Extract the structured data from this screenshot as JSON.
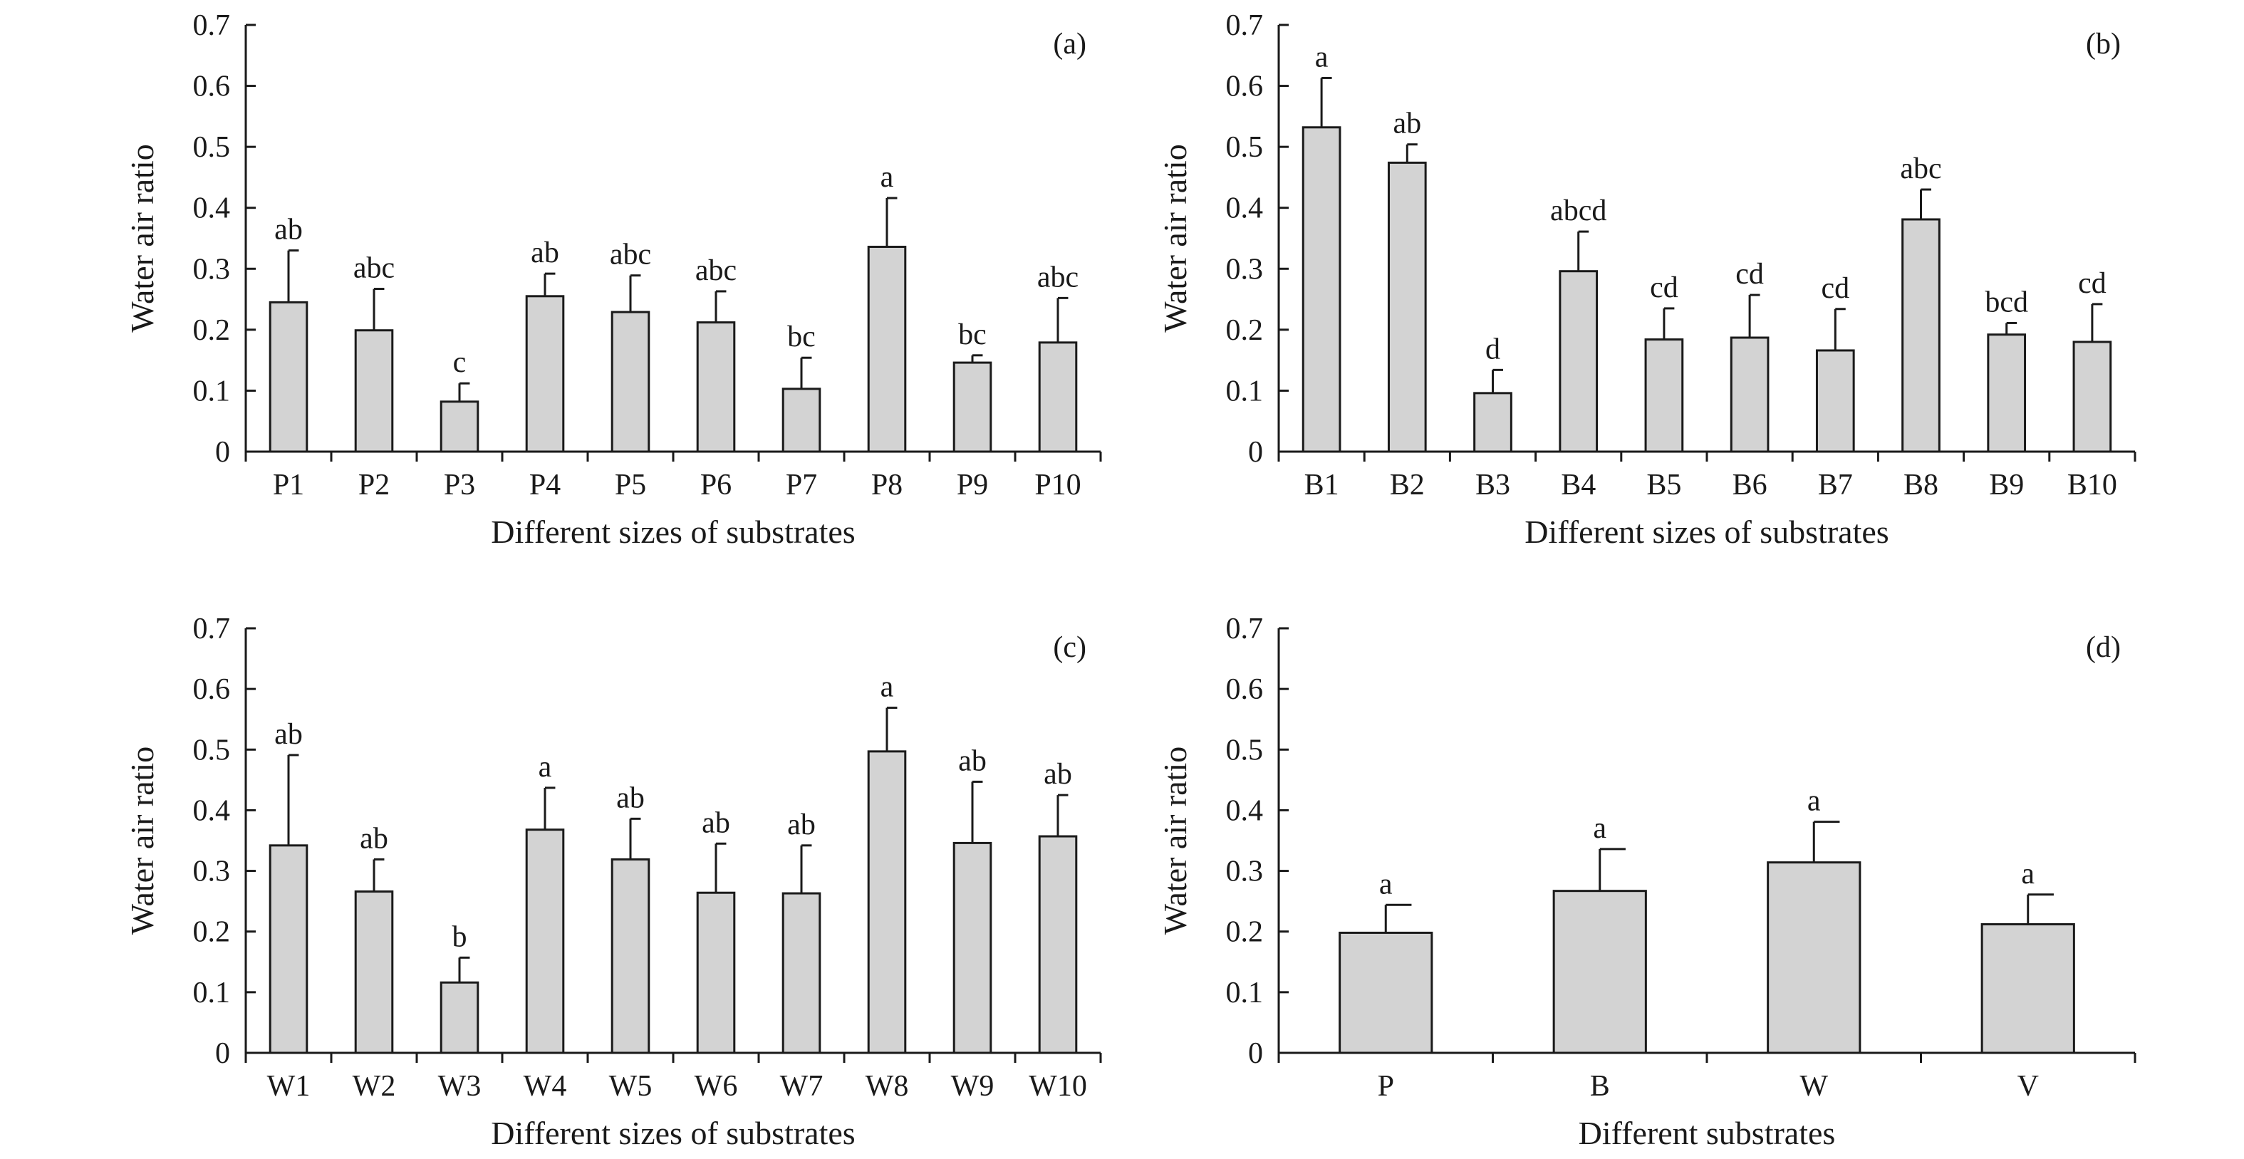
{
  "chart_data": [
    {
      "type": "bar",
      "panel_label": "(a)",
      "xlabel": "Different sizes of substrates",
      "ylabel": "Water air ratio",
      "ylim": [
        0,
        0.7
      ],
      "yticks": [
        "0",
        "0.1",
        "0.2",
        "0.3",
        "0.4",
        "0.5",
        "0.6",
        "0.7"
      ],
      "grid": false,
      "categories": [
        "P1",
        "P2",
        "P3",
        "P4",
        "P5",
        "P6",
        "P7",
        "P8",
        "P9",
        "P10"
      ],
      "values": [
        0.245,
        0.199,
        0.082,
        0.255,
        0.229,
        0.212,
        0.103,
        0.336,
        0.146,
        0.179
      ],
      "errors": [
        0.085,
        0.068,
        0.03,
        0.037,
        0.06,
        0.051,
        0.051,
        0.08,
        0.012,
        0.073
      ],
      "significance": [
        "ab",
        "abc",
        "c",
        "ab",
        "abc",
        "abc",
        "bc",
        "a",
        "bc",
        "abc"
      ]
    },
    {
      "type": "bar",
      "panel_label": "(b)",
      "xlabel": "Different sizes of substrates",
      "ylabel": "Water air ratio",
      "ylim": [
        0,
        0.7
      ],
      "yticks": [
        "0",
        "0.1",
        "0.2",
        "0.3",
        "0.4",
        "0.5",
        "0.6",
        "0.7"
      ],
      "grid": false,
      "categories": [
        "B1",
        "B2",
        "B3",
        "B4",
        "B5",
        "B6",
        "B7",
        "B8",
        "B9",
        "B10"
      ],
      "values": [
        0.532,
        0.474,
        0.096,
        0.296,
        0.184,
        0.187,
        0.166,
        0.381,
        0.192,
        0.18
      ],
      "errors": [
        0.081,
        0.03,
        0.038,
        0.065,
        0.051,
        0.07,
        0.068,
        0.049,
        0.019,
        0.062
      ],
      "significance": [
        "a",
        "ab",
        "d",
        "abcd",
        "cd",
        "cd",
        "cd",
        "abc",
        "bcd",
        "cd"
      ]
    },
    {
      "type": "bar",
      "panel_label": "(c)",
      "xlabel": "Different sizes of substrates",
      "ylabel": "Water air ratio",
      "ylim": [
        0,
        0.7
      ],
      "yticks": [
        "0",
        "0.1",
        "0.2",
        "0.3",
        "0.4",
        "0.5",
        "0.6",
        "0.7"
      ],
      "grid": false,
      "categories": [
        "W1",
        "W2",
        "W3",
        "W4",
        "W5",
        "W6",
        "W7",
        "W8",
        "W9",
        "W10"
      ],
      "values": [
        0.342,
        0.266,
        0.116,
        0.368,
        0.319,
        0.264,
        0.263,
        0.497,
        0.346,
        0.357
      ],
      "errors": [
        0.149,
        0.053,
        0.041,
        0.069,
        0.067,
        0.081,
        0.079,
        0.072,
        0.101,
        0.068
      ],
      "significance": [
        "ab",
        "ab",
        "b",
        "a",
        "ab",
        "ab",
        "ab",
        "a",
        "ab",
        "ab"
      ]
    },
    {
      "type": "bar",
      "panel_label": "(d)",
      "xlabel": "Different substrates",
      "ylabel": "Water air ratio",
      "ylim": [
        0,
        0.7
      ],
      "yticks": [
        "0",
        "0.1",
        "0.2",
        "0.3",
        "0.4",
        "0.5",
        "0.6",
        "0.7"
      ],
      "grid": false,
      "categories": [
        "P",
        "B",
        "W",
        "V"
      ],
      "values": [
        0.198,
        0.267,
        0.314,
        0.212
      ],
      "errors": [
        0.046,
        0.069,
        0.067,
        0.049
      ],
      "significance": [
        "a",
        "a",
        "a",
        "a"
      ]
    }
  ]
}
